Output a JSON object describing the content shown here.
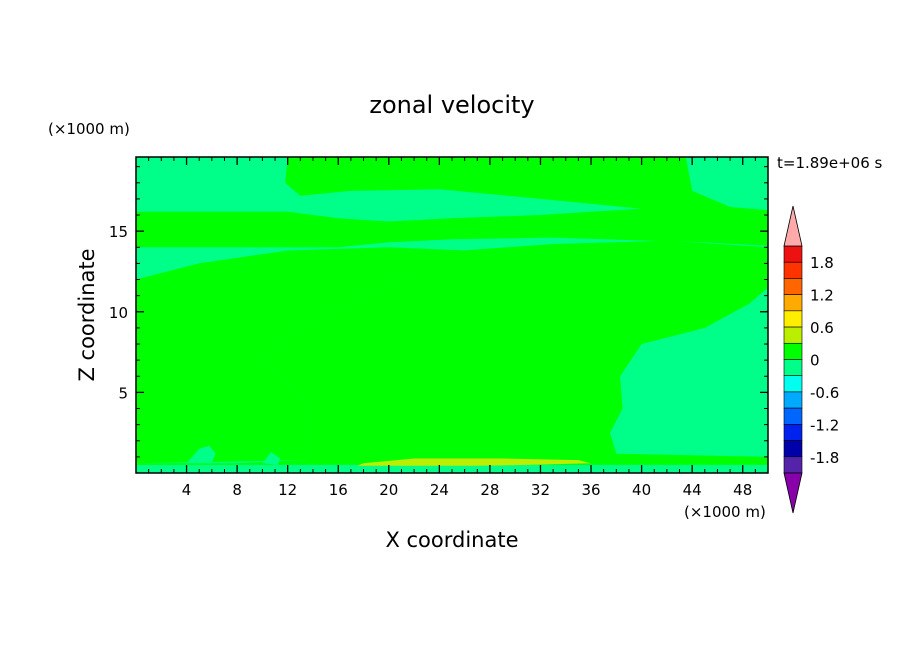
{
  "chart_data": {
    "type": "heatmap",
    "title": "zonal velocity",
    "xlabel": "X coordinate",
    "ylabel": "Z coordinate",
    "x_unit": "(×1000 m)",
    "y_unit": "(×1000 m)",
    "time_label": "t=1.89e+06 s",
    "xlim": [
      0,
      50
    ],
    "ylim": [
      0,
      19.6
    ],
    "x_ticks": [
      4,
      8,
      12,
      16,
      20,
      24,
      28,
      32,
      36,
      40,
      44,
      48
    ],
    "y_ticks": [
      5,
      10,
      15
    ],
    "colorbar": {
      "tick_labels": [
        "1.8",
        "1.2",
        "0.6",
        "0",
        "-0.6",
        "-1.2",
        "-1.8"
      ],
      "tick_values": [
        1.8,
        1.2,
        0.6,
        0,
        -0.6,
        -1.2,
        -1.8
      ],
      "levels": [
        {
          "low": 1.8,
          "high": 2.1,
          "color": "#ee1111"
        },
        {
          "low": 1.5,
          "high": 1.8,
          "color": "#ff3300"
        },
        {
          "low": 1.2,
          "high": 1.5,
          "color": "#ff6600"
        },
        {
          "low": 0.9,
          "high": 1.2,
          "color": "#ffaa00"
        },
        {
          "low": 0.6,
          "high": 0.9,
          "color": "#ffee00"
        },
        {
          "low": 0.3,
          "high": 0.6,
          "color": "#bbee00"
        },
        {
          "low": 0.0,
          "high": 0.3,
          "color": "#00ff00"
        },
        {
          "low": -0.3,
          "high": 0.0,
          "color": "#00ff88"
        },
        {
          "low": -0.6,
          "high": -0.3,
          "color": "#00ffee"
        },
        {
          "low": -0.9,
          "high": -0.6,
          "color": "#00aaff"
        },
        {
          "low": -1.2,
          "high": -0.9,
          "color": "#0066ff"
        },
        {
          "low": -1.5,
          "high": -1.2,
          "color": "#0022ee"
        },
        {
          "low": -1.8,
          "high": -1.5,
          "color": "#0000aa"
        },
        {
          "low": -2.1,
          "high": -1.8,
          "color": "#5522aa"
        }
      ],
      "over_color": "#ffaaaa",
      "under_color": "#8800aa"
    },
    "fields": {
      "background_color": "#00ff88",
      "regions": [
        {
          "level": "0 to 0.3",
          "color": "#00ff00",
          "points": [
            [
              0,
              0.5
            ],
            [
              50,
              0.5
            ],
            [
              50,
              1
            ],
            [
              38,
              1.2
            ],
            [
              37.5,
              2.5
            ],
            [
              38.5,
              4
            ],
            [
              38.3,
              6
            ],
            [
              40,
              8
            ],
            [
              45,
              9
            ],
            [
              48.5,
              10.5
            ],
            [
              50,
              11.5
            ],
            [
              50,
              14
            ],
            [
              42,
              14.4
            ],
            [
              33,
              14.2
            ],
            [
              26,
              13.8
            ],
            [
              22,
              12.5
            ],
            [
              18,
              11
            ],
            [
              13,
              9
            ],
            [
              10,
              7.5
            ],
            [
              10.5,
              6.5
            ],
            [
              12,
              5.8
            ],
            [
              13.5,
              4.2
            ],
            [
              13.5,
              0.8
            ],
            [
              8,
              0.6
            ],
            [
              0,
              0.6
            ]
          ]
        },
        {
          "level": "0 to 0.3",
          "color": "#00ff00",
          "points": [
            [
              13.5,
              0.8
            ],
            [
              14,
              0.6
            ],
            [
              38,
              0.6
            ],
            [
              37.5,
              1.3
            ],
            [
              32,
              1.6
            ],
            [
              24,
              1.5
            ],
            [
              18,
              1.2
            ],
            [
              14,
              1
            ]
          ]
        },
        {
          "level": "0 to 0.3",
          "color": "#00ff00",
          "points": [
            [
              0,
              0.6
            ],
            [
              13.5,
              0.8
            ],
            [
              13.5,
              4.2
            ],
            [
              12,
              5.8
            ],
            [
              10.5,
              6.5
            ],
            [
              10,
              7.5
            ],
            [
              13,
              9
            ],
            [
              18,
              11
            ],
            [
              22,
              12.5
            ],
            [
              30,
              13.3
            ],
            [
              34,
              13.2
            ],
            [
              38,
              13.6
            ],
            [
              45,
              13.7
            ],
            [
              50,
              13.8
            ],
            [
              50,
              14
            ],
            [
              42,
              14.4
            ],
            [
              33,
              14.2
            ],
            [
              26,
              13.8
            ],
            [
              20,
              14
            ],
            [
              12,
              13.8
            ],
            [
              5,
              13
            ],
            [
              0,
              12
            ]
          ]
        },
        {
          "level": "0 to 0.3",
          "color": "#00ff00",
          "points": [
            [
              0,
              14
            ],
            [
              16,
              14
            ],
            [
              20,
              14.3
            ],
            [
              25,
              14.5
            ],
            [
              33,
              14.6
            ],
            [
              45,
              14.3
            ],
            [
              50,
              14.1
            ],
            [
              50,
              16.3
            ],
            [
              47,
              16.5
            ],
            [
              44,
              17.5
            ],
            [
              43.5,
              19.6
            ],
            [
              12,
              19.6
            ],
            [
              11.8,
              18
            ],
            [
              13,
              17.2
            ],
            [
              17,
              17.5
            ],
            [
              24,
              17.6
            ],
            [
              32,
              17
            ],
            [
              40,
              16.4
            ],
            [
              32,
              16
            ],
            [
              25,
              15.8
            ],
            [
              20,
              15.6
            ],
            [
              16,
              15.8
            ],
            [
              12,
              16.2
            ],
            [
              0,
              16.2
            ]
          ]
        },
        {
          "level": "0 to 0.3",
          "color": "#00ff00",
          "points": [
            [
              12,
              15.3
            ],
            [
              18,
              14.7
            ],
            [
              22,
              14.8
            ],
            [
              18,
              15.4
            ],
            [
              14.5,
              15.5
            ]
          ]
        },
        {
          "level": "0.3 to 0.6",
          "color": "#bbee00",
          "points": [
            [
              17,
              0.3
            ],
            [
              24,
              0.4
            ],
            [
              31,
              0.5
            ],
            [
              36,
              0.6
            ],
            [
              35,
              0.8
            ],
            [
              29,
              0.9
            ],
            [
              22,
              0.9
            ],
            [
              18,
              0.6
            ]
          ]
        },
        {
          "level": "-0.3 to 0",
          "color": "#00ff88",
          "points": [
            [
              0,
              0.3
            ],
            [
              50,
              0.3
            ],
            [
              50,
              0.45
            ],
            [
              0,
              0.45
            ]
          ]
        },
        {
          "level": "-0.3 to 0",
          "color": "#00ff88",
          "points": [
            [
              4,
              0.6
            ],
            [
              5,
              1.5
            ],
            [
              5.8,
              1.7
            ],
            [
              6.3,
              1.2
            ],
            [
              6,
              0.6
            ]
          ]
        },
        {
          "level": "-0.3 to 0",
          "color": "#00ff88",
          "points": [
            [
              10,
              0.6
            ],
            [
              10.7,
              1.3
            ],
            [
              11.4,
              0.9
            ],
            [
              11.2,
              0.5
            ]
          ]
        }
      ]
    }
  }
}
